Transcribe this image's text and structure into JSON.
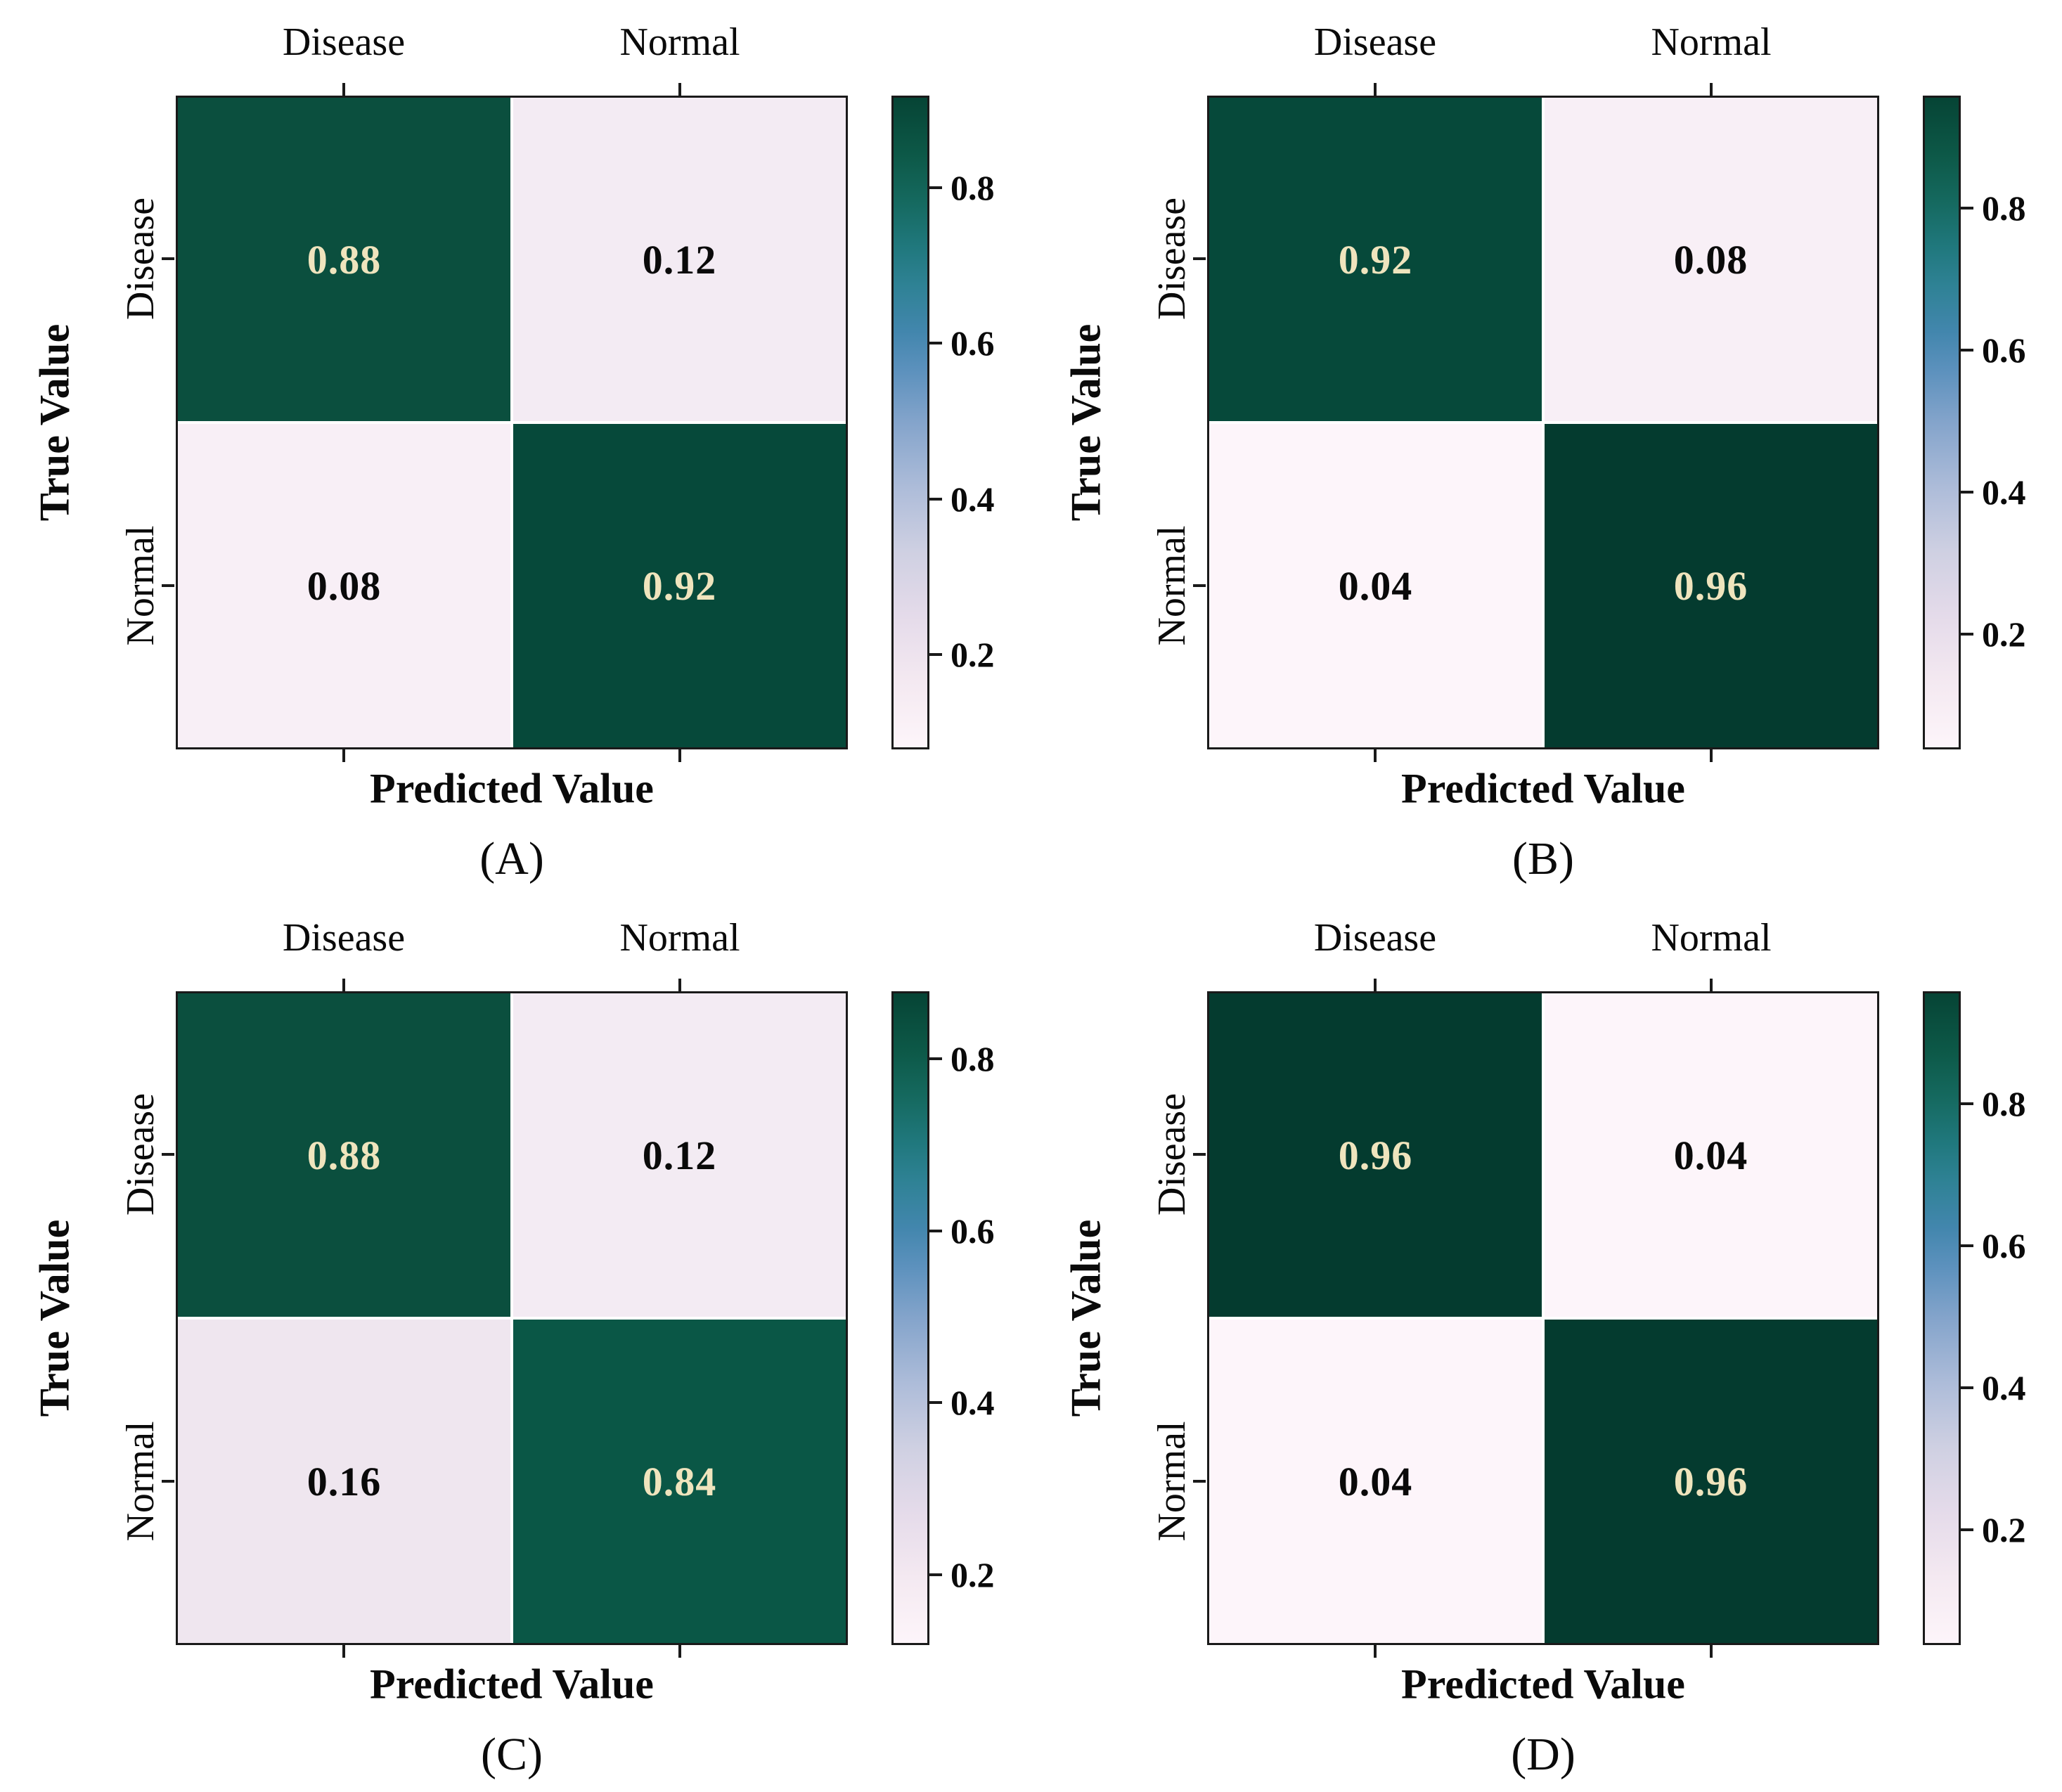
{
  "figure": {
    "type": "confusion-matrix-grid",
    "classes": [
      "Disease",
      "Normal"
    ],
    "x_axis_label": "Predicted Value",
    "y_axis_label": "True Value",
    "colors": {
      "high_cell_green": "#0b4f3e",
      "low_cell_pink": "#f3ebf3",
      "diagonal_text": "#efe4bd",
      "offdiagonal_text": "#0a0a0a",
      "colormap": "white-pink to blue to dark green (PuBuGn-like)"
    }
  },
  "chart_data": [
    {
      "type": "heatmap",
      "title": "(A)",
      "xlabel": "Predicted Value",
      "ylabel": "True Value",
      "x_categories": [
        "Disease",
        "Normal"
      ],
      "y_categories": [
        "Disease",
        "Normal"
      ],
      "values": [
        [
          0.88,
          0.12
        ],
        [
          0.08,
          0.92
        ]
      ],
      "colorbar": {
        "tick_labels": [
          "0.8",
          "0.6",
          "0.4",
          "0.2"
        ],
        "vmin": 0.08,
        "vmax": 0.92
      }
    },
    {
      "type": "heatmap",
      "title": "(B)",
      "xlabel": "Predicted Value",
      "ylabel": "True Value",
      "x_categories": [
        "Disease",
        "Normal"
      ],
      "y_categories": [
        "Disease",
        "Normal"
      ],
      "values": [
        [
          0.92,
          0.08
        ],
        [
          0.04,
          0.96
        ]
      ],
      "colorbar": {
        "tick_labels": [
          "0.8",
          "0.6",
          "0.4",
          "0.2"
        ],
        "vmin": 0.04,
        "vmax": 0.96
      }
    },
    {
      "type": "heatmap",
      "title": "(C)",
      "xlabel": "Predicted Value",
      "ylabel": "True Value",
      "x_categories": [
        "Disease",
        "Normal"
      ],
      "y_categories": [
        "Disease",
        "Normal"
      ],
      "values": [
        [
          0.88,
          0.12
        ],
        [
          0.16,
          0.84
        ]
      ],
      "colorbar": {
        "tick_labels": [
          "0.8",
          "0.6",
          "0.4",
          "0.2"
        ],
        "vmin": 0.12,
        "vmax": 0.88
      }
    },
    {
      "type": "heatmap",
      "title": "(D)",
      "xlabel": "Predicted Value",
      "ylabel": "True Value",
      "x_categories": [
        "Disease",
        "Normal"
      ],
      "y_categories": [
        "Disease",
        "Normal"
      ],
      "values": [
        [
          0.96,
          0.04
        ],
        [
          0.04,
          0.96
        ]
      ],
      "colorbar": {
        "tick_labels": [
          "0.8",
          "0.6",
          "0.4",
          "0.2"
        ],
        "vmin": 0.04,
        "vmax": 0.96
      }
    }
  ]
}
